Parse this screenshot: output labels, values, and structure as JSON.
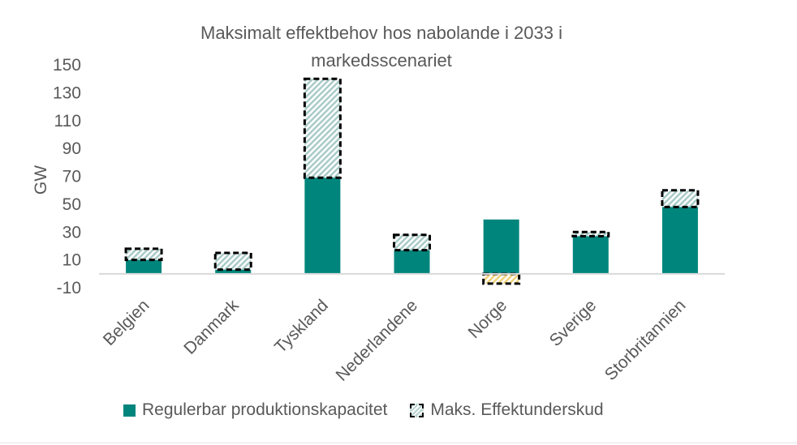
{
  "chart_data": {
    "type": "bar",
    "title": "Maksimalt effektbehov hos nabolande i 2033 i markedsscenariet",
    "title_lines": [
      "Maksimalt effektbehov hos nabolande i 2033 i",
      "markedsscenariet"
    ],
    "ylabel": "GW",
    "xlabel": "",
    "ylim": [
      -10,
      150
    ],
    "yticks": [
      -10,
      10,
      30,
      50,
      70,
      90,
      110,
      130,
      150
    ],
    "categories": [
      "Belgien",
      "Danmark",
      "Tyskland",
      "Nederlandene",
      "Norge",
      "Sverige",
      "Storbritannien"
    ],
    "series": [
      {
        "name": "Regulerbar produktionskapacitet",
        "values": [
          10,
          3,
          69,
          17,
          39,
          27,
          48
        ],
        "color": "#00857c",
        "style": "solid"
      },
      {
        "name": "Maks. Effektunderskud",
        "values": [
          8,
          12,
          71,
          11,
          -7,
          3,
          12
        ],
        "color": "#b7d3d0",
        "negative_color": "#f2d98a",
        "style": "hatched-dashed",
        "stacked": true
      }
    ],
    "legend_position": "bottom",
    "grid": false
  }
}
